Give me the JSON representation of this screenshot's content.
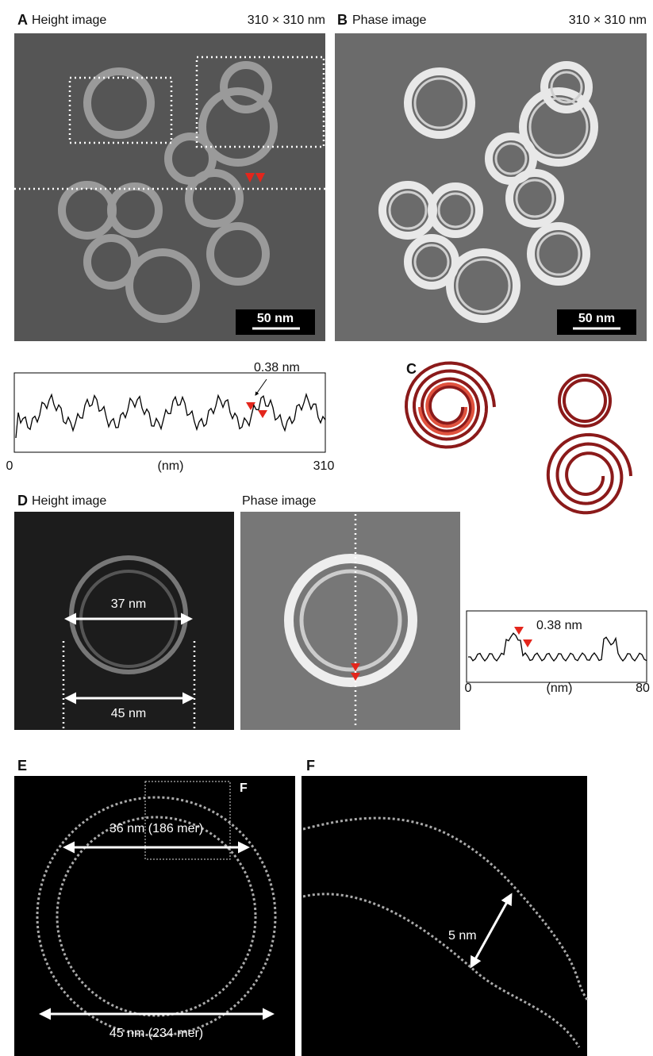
{
  "panel_a": {
    "letter": "A",
    "title": "Height image",
    "size": "310 × 310 nm",
    "scale_bar": "50 nm",
    "profile": {
      "annotation": "0.38 nm",
      "x_start": "0",
      "x_label": "(nm)",
      "x_end": "310"
    }
  },
  "panel_b": {
    "letter": "B",
    "title": "Phase image",
    "size": "310 × 310 nm",
    "scale_bar": "50 nm"
  },
  "panel_c": {
    "letter": "C"
  },
  "panel_d": {
    "letter": "D",
    "height_title": "Height image",
    "phase_title": "Phase image",
    "inner_width": "37 nm",
    "outer_width": "45 nm",
    "profile": {
      "annotation": "0.38 nm",
      "x_start": "0",
      "x_label": "(nm)",
      "x_end": "80"
    }
  },
  "panel_e": {
    "letter": "E",
    "inset_label": "F",
    "inner_diameter": "36 nm (186 mer)",
    "outer_diameter": "45 nm (234 mer)"
  },
  "panel_f": {
    "letter": "F",
    "spacing": "5 nm"
  }
}
